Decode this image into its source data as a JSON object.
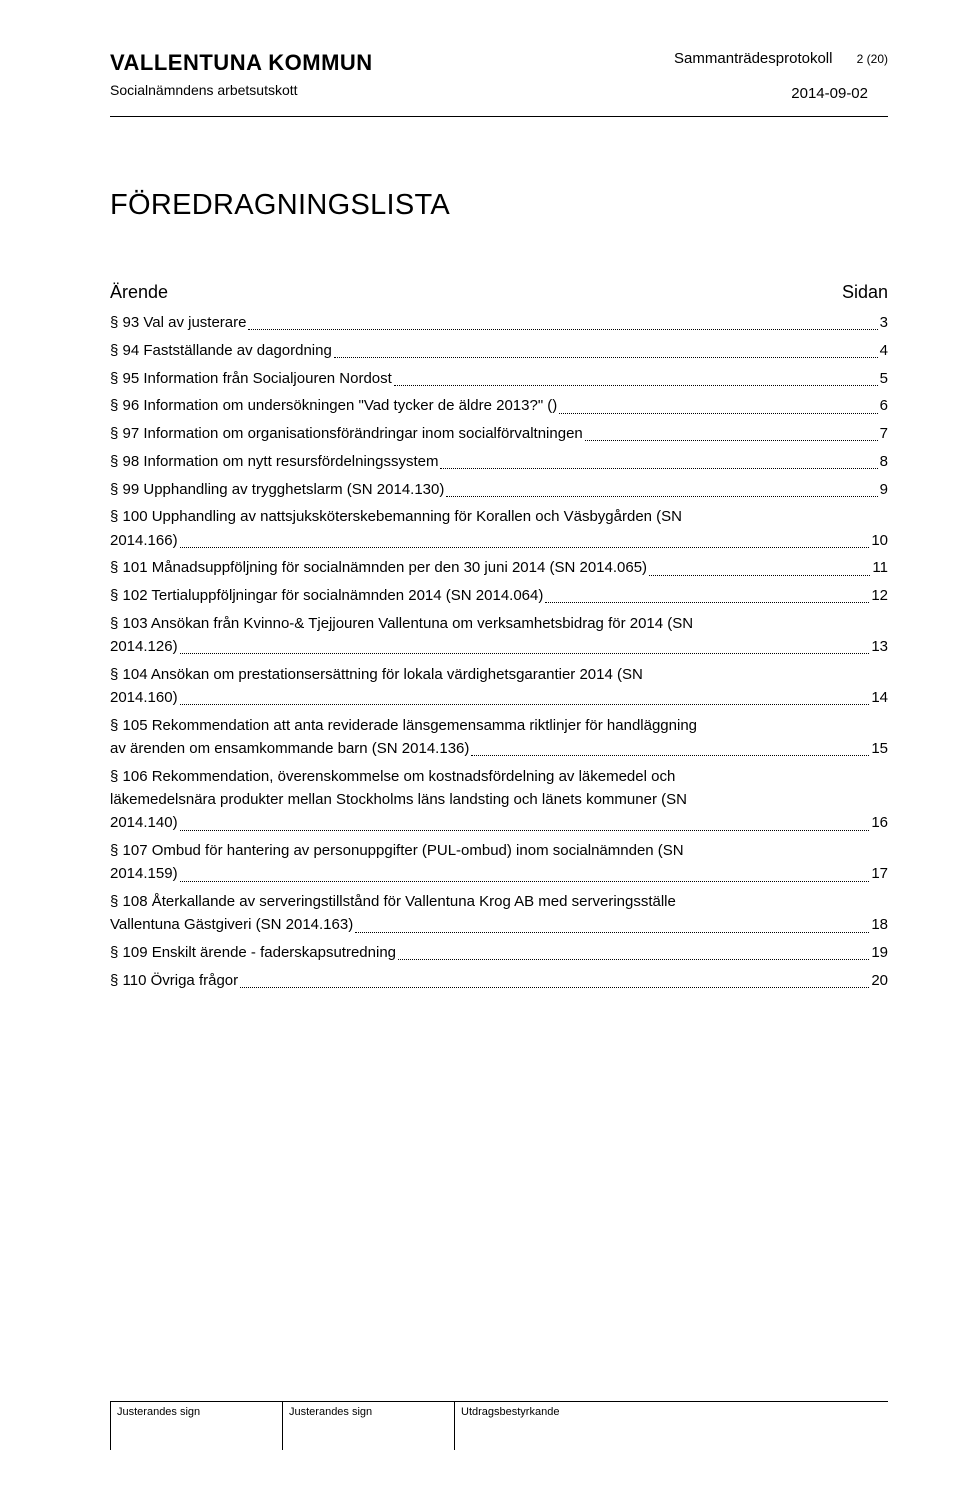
{
  "header": {
    "org": "VALLENTUNA KOMMUN",
    "unit": "Socialnämndens arbetsutskott",
    "docType": "Sammanträdesprotokoll",
    "pageIndicator": "2 (20)",
    "date": "2014-09-02"
  },
  "title": "FÖREDRAGNINGSLISTA",
  "toc": {
    "heading_left": "Ärende",
    "heading_right": "Sidan",
    "entries": [
      {
        "label": "§ 93 Val av justerare",
        "page": "3"
      },
      {
        "label": "§ 94 Fastställande av dagordning",
        "page": "4"
      },
      {
        "label": "§ 95 Information från Socialjouren Nordost",
        "page": "5"
      },
      {
        "label": "§ 96 Information om undersökningen \"Vad tycker de äldre 2013?\" ()",
        "page": "6"
      },
      {
        "label": "§ 97 Information om organisationsförändringar inom socialförvaltningen",
        "page": "7"
      },
      {
        "label": "§ 98 Information om nytt resursfördelningssystem",
        "page": "8"
      },
      {
        "label": "§ 99 Upphandling av trygghetslarm (SN 2014.130)",
        "page": "9"
      },
      {
        "pre": [
          "§ 100 Upphandling av nattsjuksköterskebemanning för Korallen och Väsbygården (SN"
        ],
        "label": "2014.166)",
        "page": "10"
      },
      {
        "label": "§ 101 Månadsuppföljning för socialnämnden per den 30 juni 2014 (SN 2014.065)",
        "page": "11"
      },
      {
        "label": "§ 102 Tertialuppföljningar för socialnämnden 2014 (SN 2014.064)",
        "page": "12"
      },
      {
        "pre": [
          "§ 103 Ansökan från Kvinno-& Tjejjouren Vallentuna om verksamhetsbidrag för 2014 (SN"
        ],
        "label": "2014.126)",
        "page": "13"
      },
      {
        "pre": [
          "§ 104 Ansökan om prestationsersättning för lokala värdighetsgarantier 2014 (SN"
        ],
        "label": "2014.160)",
        "page": "14"
      },
      {
        "pre": [
          "§ 105 Rekommendation att anta reviderade länsgemensamma riktlinjer för handläggning"
        ],
        "label": "av ärenden om ensamkommande barn (SN 2014.136)",
        "page": "15"
      },
      {
        "pre": [
          "§ 106 Rekommendation, överenskommelse om kostnadsfördelning av läkemedel och",
          "läkemedelsnära produkter mellan Stockholms läns landsting och länets kommuner (SN"
        ],
        "label": "2014.140)",
        "page": "16"
      },
      {
        "pre": [
          "§ 107 Ombud för hantering av personuppgifter (PUL-ombud) inom socialnämnden (SN"
        ],
        "label": "2014.159)",
        "page": "17"
      },
      {
        "pre": [
          "§ 108 Återkallande av serveringstillstånd för Vallentuna Krog AB med serveringsställe"
        ],
        "label": "Vallentuna Gästgiveri (SN 2014.163)",
        "page": "18"
      },
      {
        "label": "§ 109 Enskilt ärende - faderskapsutredning",
        "page": "19"
      },
      {
        "label": "§ 110 Övriga frågor",
        "page": "20"
      }
    ]
  },
  "footer": {
    "c1": "Justerandes sign",
    "c2": "Justerandes sign",
    "c3": "Utdragsbestyrkande"
  }
}
